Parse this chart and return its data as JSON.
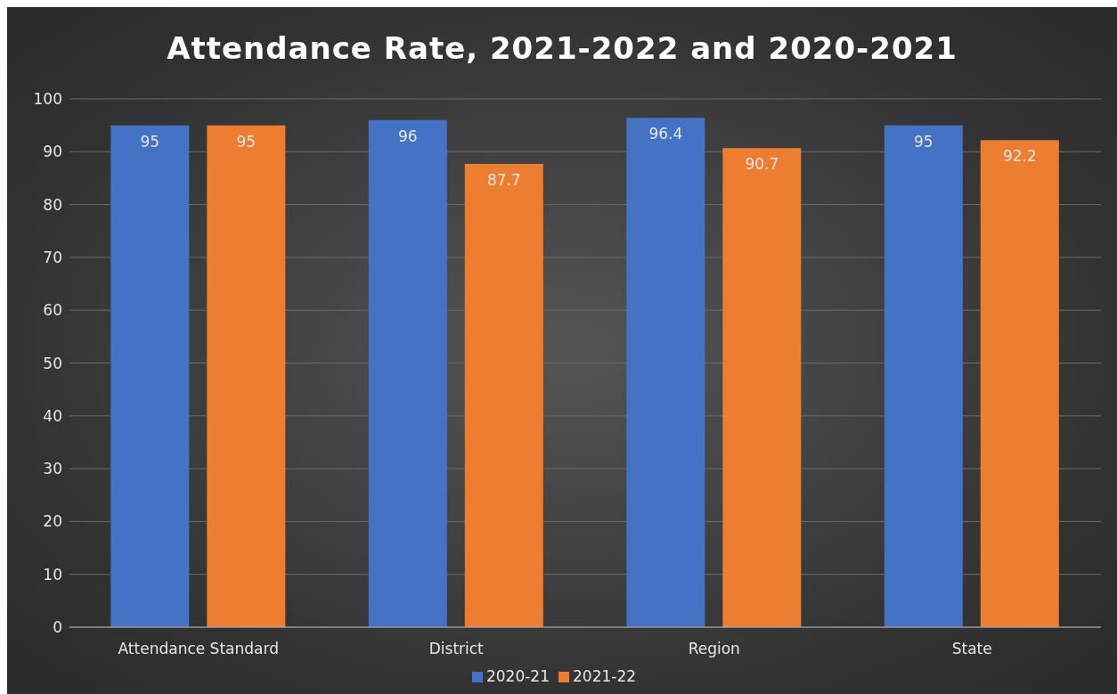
{
  "chart_data": {
    "type": "bar",
    "title": "Attendance Rate, 2021-2022 and 2020-2021",
    "categories": [
      "Attendance Standard",
      "District",
      "Region",
      "State"
    ],
    "series": [
      {
        "name": "2020-21",
        "color": "#4472c4",
        "values": [
          95,
          96,
          96.4,
          95
        ]
      },
      {
        "name": "2021-22",
        "color": "#ed7d31",
        "values": [
          95,
          87.7,
          90.7,
          92.2
        ]
      }
    ],
    "ylim": [
      0,
      100
    ],
    "yticks": [
      0,
      10,
      20,
      30,
      40,
      50,
      60,
      70,
      80,
      90,
      100
    ],
    "grid": "y",
    "legend": "bottom",
    "data_labels": true
  }
}
